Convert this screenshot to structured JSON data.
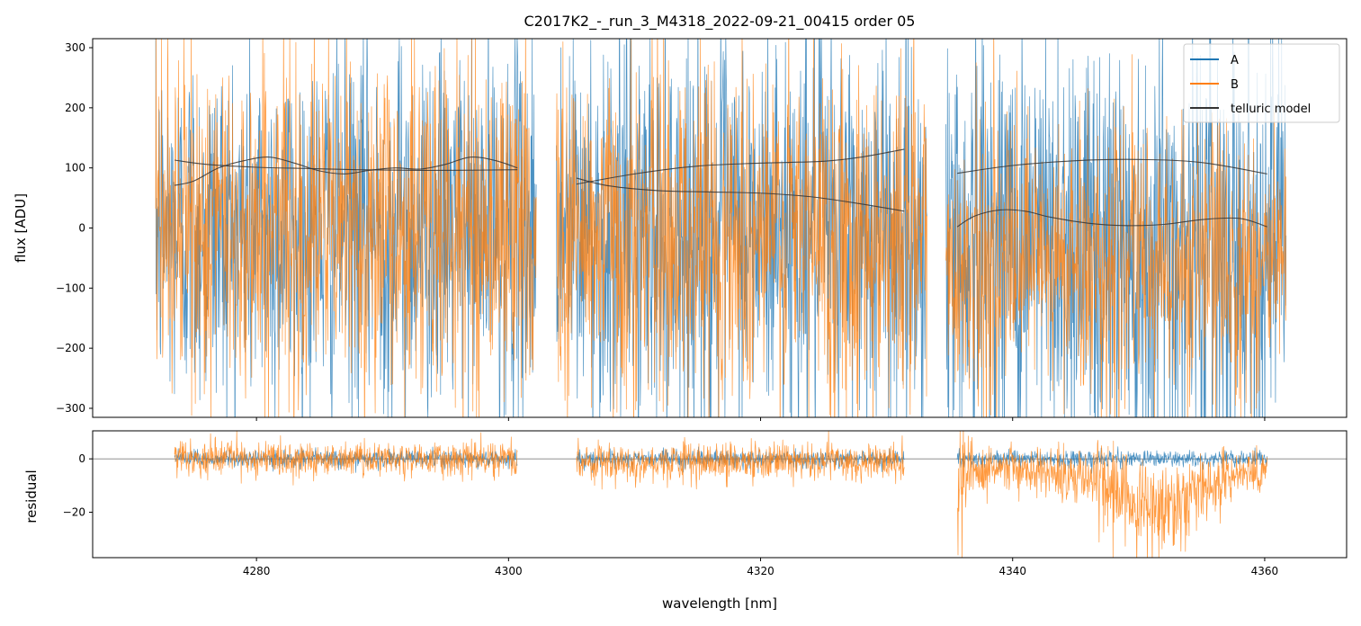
{
  "chart_data": {
    "type": "line",
    "title": "C2017K2_-_run_3_M4318_2022-09-21_00415  order 05",
    "xlabel": "wavelength [nm]",
    "xlim": [
      4267,
      4366.5
    ],
    "x_ticks": [
      4280,
      4300,
      4320,
      4340,
      4360
    ],
    "x_tick_labels": [
      "4280",
      "4300",
      "4320",
      "4340",
      "4360"
    ],
    "legend": {
      "placement": "top-right",
      "entries": [
        "A",
        "B",
        "telluric model"
      ]
    },
    "colors": {
      "A": "#1f77b4",
      "B": "#ff7f0e",
      "telluric": "#333333",
      "zero_line": "#808080"
    },
    "segments": [
      {
        "range": [
          4272.0,
          4302.2
        ],
        "residual_range": [
          4273.5,
          4300.7
        ]
      },
      {
        "range": [
          4303.8,
          4333.2
        ],
        "residual_range": [
          4305.4,
          4331.4
        ]
      },
      {
        "range": [
          4334.7,
          4361.7
        ],
        "residual_range": [
          4335.6,
          4360.2
        ]
      }
    ],
    "panels": [
      {
        "name": "flux",
        "ylabel": "flux [ADU]",
        "ylim": [
          -315,
          315
        ],
        "y_ticks": [
          -300,
          -200,
          -100,
          0,
          100,
          200,
          300
        ],
        "y_tick_labels": [
          "−300",
          "−200",
          "−100",
          "0",
          "100",
          "200",
          "300"
        ],
        "series": [
          {
            "name": "A",
            "noise_std": [
              150,
              165,
              185
            ],
            "center": [
              0,
              -5,
              -20
            ]
          },
          {
            "name": "B",
            "noise_std": [
              140,
              145,
              115
            ],
            "center": [
              0,
              -10,
              -60
            ]
          }
        ],
        "telluric_model": [
          {
            "name": "A",
            "x": [
              4273.5,
              4276,
              4280,
              4284,
              4288,
              4292,
              4296,
              4300.7
            ],
            "y": [
              113,
              106,
              101,
              99,
              97,
              96,
              96,
              97
            ]
          },
          {
            "name": "B",
            "x": [
              4273.5,
              4275,
              4277,
              4279,
              4281,
              4283,
              4285,
              4287,
              4289,
              4291,
              4293,
              4295,
              4297,
              4299,
              4300.7
            ],
            "y": [
              71,
              78,
              100,
              112,
              118,
              108,
              95,
              90,
              96,
              100,
              98,
              106,
              118,
              112,
              100
            ]
          },
          {
            "name": "A",
            "x": [
              4305.4,
              4310,
              4315,
              4320,
              4325,
              4328,
              4331.4
            ],
            "y": [
              73,
              90,
              103,
              108,
              111,
              118,
              131
            ]
          },
          {
            "name": "B",
            "x": [
              4305.4,
              4308,
              4312,
              4316,
              4320,
              4324,
              4328,
              4331.4
            ],
            "y": [
              83,
              70,
              62,
              60,
              58,
              52,
              40,
              28
            ]
          },
          {
            "name": "A",
            "x": [
              4335.6,
              4340,
              4345,
              4350,
              4355,
              4360.2
            ],
            "y": [
              91,
              104,
              112,
              114,
              109,
              90
            ]
          },
          {
            "name": "B",
            "x": [
              4335.6,
              4337,
              4339,
              4341,
              4343,
              4346,
              4349,
              4352,
              4355,
              4358,
              4360.2
            ],
            "y": [
              2,
              20,
              30,
              28,
              18,
              8,
              4,
              6,
              14,
              16,
              2
            ]
          }
        ]
      },
      {
        "name": "residual",
        "ylabel": "residual",
        "ylim": [
          -37,
          10.5
        ],
        "y_ticks": [
          -20,
          0
        ],
        "y_tick_labels": [
          "−20",
          "0"
        ],
        "zero_line": 0,
        "series": [
          {
            "name": "A",
            "noise_std": [
              1.5,
              1.5,
              1.5
            ],
            "center": [
              0,
              0,
              0
            ]
          },
          {
            "name": "B",
            "noise_std": [
              3.2,
              3.5,
              6.0
            ],
            "center": [
              0,
              -1,
              -10
            ]
          }
        ]
      }
    ]
  }
}
